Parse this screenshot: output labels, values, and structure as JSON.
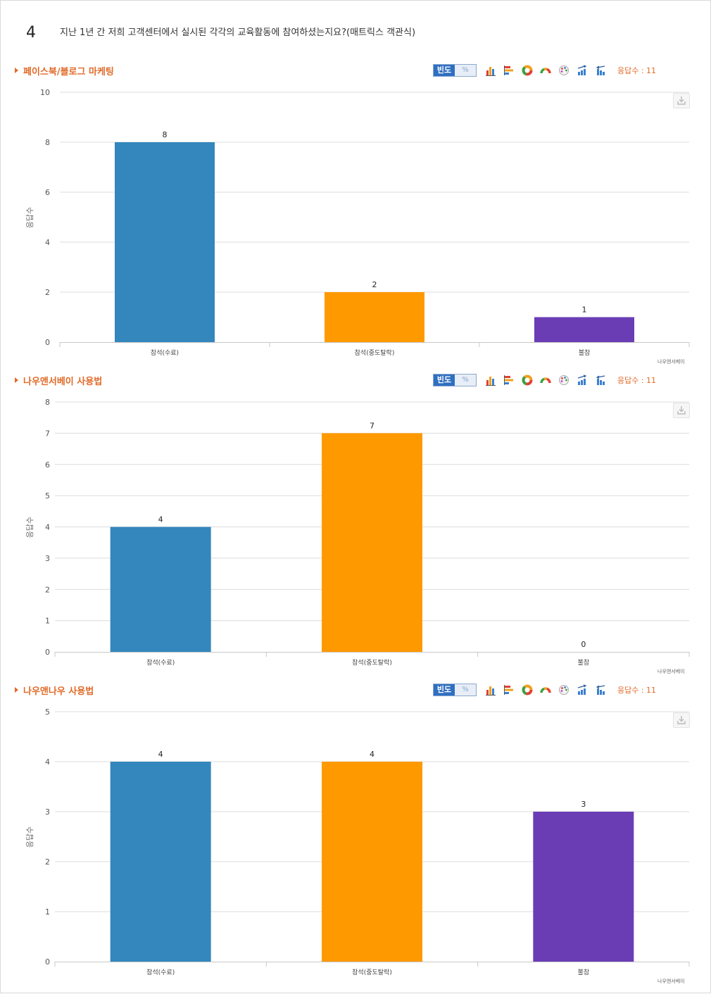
{
  "question": {
    "number": "4",
    "text": "지난 1년 간 저희 고객센터에서 실시된 각각의 교육활동에 참여하셨는지요?(매트릭스 객관식)"
  },
  "toolbar": {
    "freq_label": "빈도",
    "percent_label": "%",
    "icons": [
      "bar-chart-icon",
      "horizontal-bar-icon",
      "donut-chart-icon",
      "gauge-chart-icon",
      "palette-icon",
      "sort-ascending-icon",
      "sort-descending-icon"
    ]
  },
  "credit": "나우앤서베이",
  "colors": {
    "series": [
      "#3387bd",
      "#ff9900",
      "#6a3db5"
    ],
    "accent": "#e06a28"
  },
  "chart_data": [
    {
      "type": "bar",
      "title": "페이스북/블로그 마케팅",
      "response_count": "응답수 : 11",
      "ylabel": "응답수",
      "categories": [
        "참석(수료)",
        "참석(중도탈락)",
        "불참"
      ],
      "values": [
        8,
        2,
        1
      ],
      "ylim": [
        0,
        10
      ],
      "yticks": [
        0,
        2,
        4,
        6,
        8,
        10
      ],
      "grid": true
    },
    {
      "type": "bar",
      "title": "나우앤서베이 사용법",
      "response_count": "응답수 : 11",
      "ylabel": "응답수",
      "categories": [
        "참석(수료)",
        "참석(중도탈락)",
        "불참"
      ],
      "values": [
        4,
        7,
        0
      ],
      "ylim": [
        0,
        8
      ],
      "yticks": [
        0,
        1,
        2,
        3,
        4,
        5,
        6,
        7,
        8
      ],
      "grid": true
    },
    {
      "type": "bar",
      "title": "나우앤나우 사용법",
      "response_count": "응답수 : 11",
      "ylabel": "응답수",
      "categories": [
        "참석(수료)",
        "참석(중도탈락)",
        "불참"
      ],
      "values": [
        4,
        4,
        3
      ],
      "ylim": [
        0,
        5
      ],
      "yticks": [
        0,
        1,
        2,
        3,
        4,
        5
      ],
      "grid": true
    }
  ]
}
